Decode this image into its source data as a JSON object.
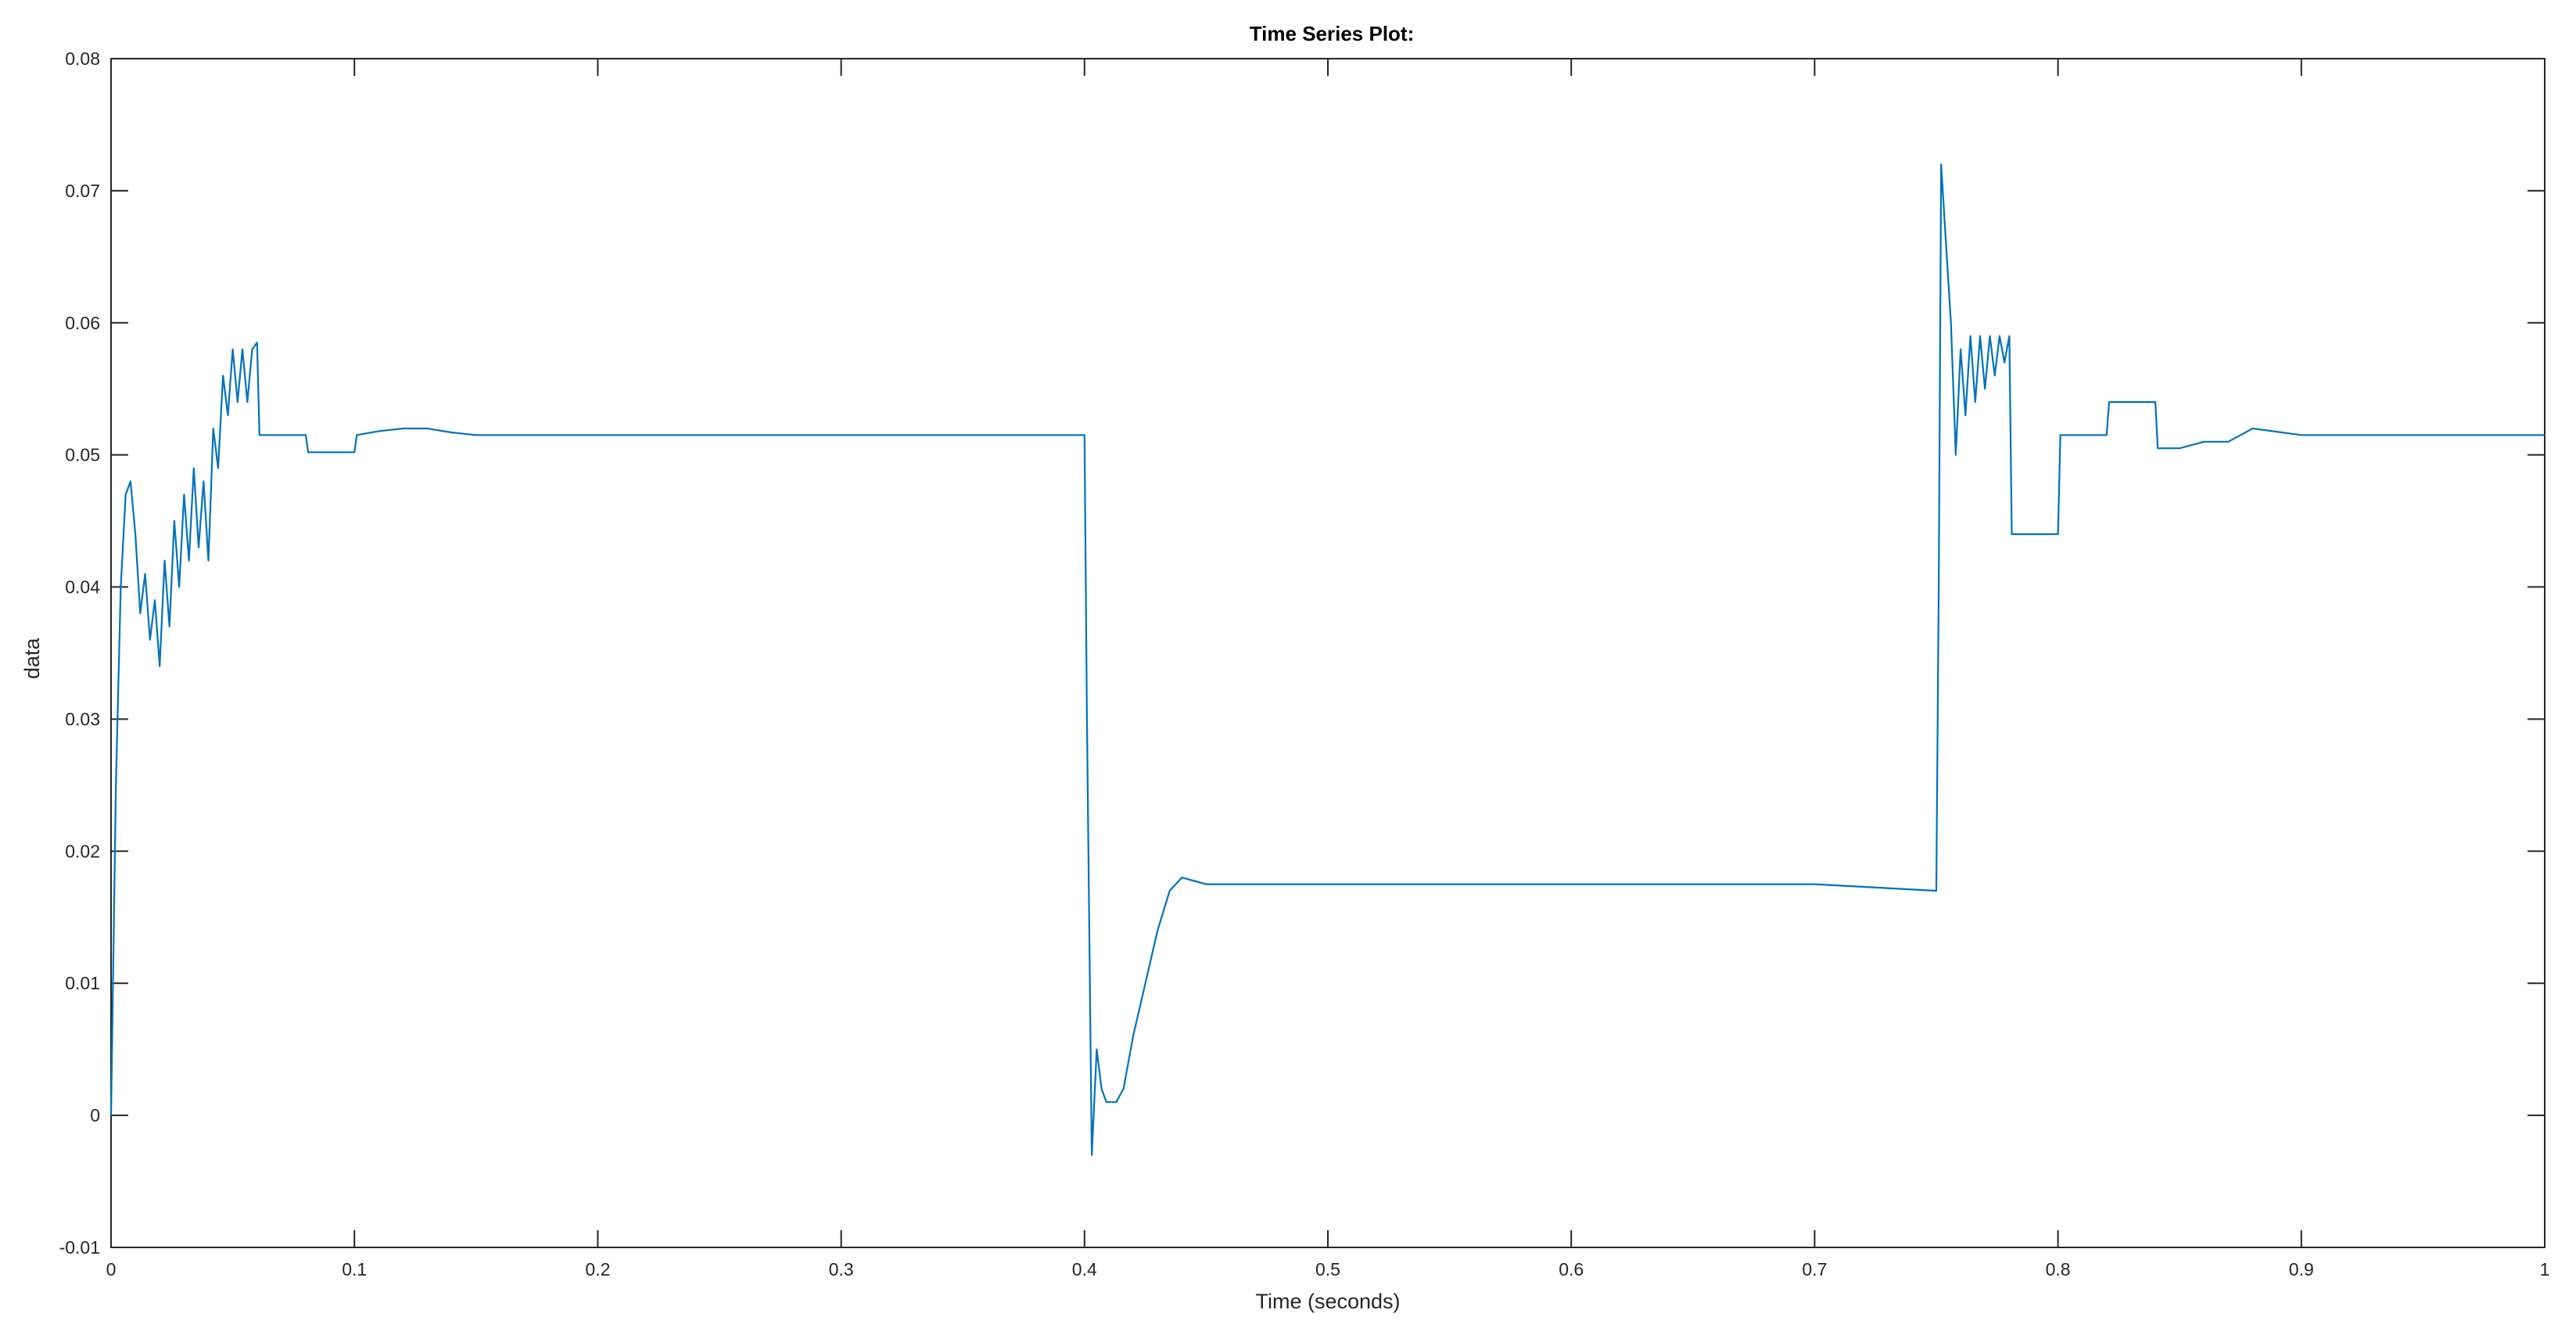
{
  "chart_data": {
    "type": "line",
    "title": "Time Series Plot:",
    "xlabel": "Time (seconds)",
    "ylabel": "data",
    "xlim": [
      0,
      1
    ],
    "ylim": [
      -0.01,
      0.08
    ],
    "x_ticks": [
      "0",
      "0.1",
      "0.2",
      "0.3",
      "0.4",
      "0.5",
      "0.6",
      "0.7",
      "0.8",
      "0.9",
      "1"
    ],
    "y_ticks": [
      "-0.01",
      "0",
      "0.01",
      "0.02",
      "0.03",
      "0.04",
      "0.05",
      "0.06",
      "0.07",
      "0.08"
    ],
    "grid": false,
    "box": true,
    "line_color": "#0072BD",
    "series": [
      {
        "x": [
          0,
          0.002,
          0.004,
          0.006,
          0.008,
          0.01,
          0.012,
          0.014,
          0.016,
          0.018,
          0.02,
          0.022,
          0.024,
          0.026,
          0.028,
          0.03,
          0.032,
          0.034,
          0.036,
          0.038,
          0.04,
          0.042,
          0.044,
          0.046,
          0.048,
          0.05,
          0.052,
          0.054,
          0.056,
          0.058,
          0.06,
          0.061,
          0.065,
          0.07,
          0.075,
          0.08,
          0.081,
          0.085,
          0.09,
          0.095,
          0.1,
          0.101,
          0.11,
          0.12,
          0.13,
          0.14,
          0.15,
          0.2,
          0.25,
          0.3,
          0.35,
          0.4,
          0.401,
          0.403,
          0.405,
          0.407,
          0.409,
          0.41,
          0.413,
          0.416,
          0.42,
          0.425,
          0.43,
          0.435,
          0.44,
          0.45,
          0.5,
          0.55,
          0.6,
          0.65,
          0.7,
          0.75,
          0.751,
          0.752,
          0.754,
          0.756,
          0.758,
          0.76,
          0.762,
          0.764,
          0.766,
          0.768,
          0.77,
          0.772,
          0.774,
          0.776,
          0.778,
          0.78,
          0.781,
          0.785,
          0.79,
          0.795,
          0.8,
          0.801,
          0.805,
          0.81,
          0.815,
          0.82,
          0.821,
          0.825,
          0.83,
          0.835,
          0.84,
          0.841,
          0.845,
          0.85,
          0.86,
          0.87,
          0.88,
          0.9,
          0.95,
          1.0
        ],
        "y": [
          0.0,
          0.025,
          0.04,
          0.047,
          0.048,
          0.044,
          0.038,
          0.041,
          0.036,
          0.039,
          0.034,
          0.042,
          0.037,
          0.045,
          0.04,
          0.047,
          0.042,
          0.049,
          0.043,
          0.048,
          0.042,
          0.052,
          0.049,
          0.056,
          0.053,
          0.058,
          0.054,
          0.058,
          0.054,
          0.058,
          0.0585,
          0.0515,
          0.0515,
          0.0515,
          0.0515,
          0.0515,
          0.0502,
          0.0502,
          0.0502,
          0.0502,
          0.0502,
          0.0515,
          0.0518,
          0.052,
          0.052,
          0.0517,
          0.0515,
          0.0515,
          0.0515,
          0.0515,
          0.0515,
          0.0515,
          0.03,
          -0.003,
          0.005,
          0.002,
          0.001,
          0.001,
          0.001,
          0.002,
          0.006,
          0.01,
          0.014,
          0.017,
          0.018,
          0.0175,
          0.0175,
          0.0175,
          0.0175,
          0.0175,
          0.0175,
          0.017,
          0.04,
          0.072,
          0.066,
          0.06,
          0.05,
          0.058,
          0.053,
          0.059,
          0.054,
          0.059,
          0.055,
          0.059,
          0.056,
          0.059,
          0.057,
          0.059,
          0.044,
          0.044,
          0.044,
          0.044,
          0.044,
          0.0515,
          0.0515,
          0.0515,
          0.0515,
          0.0515,
          0.054,
          0.054,
          0.054,
          0.054,
          0.054,
          0.0505,
          0.0505,
          0.0505,
          0.051,
          0.051,
          0.052,
          0.0515,
          0.0515,
          0.0515
        ]
      }
    ]
  }
}
